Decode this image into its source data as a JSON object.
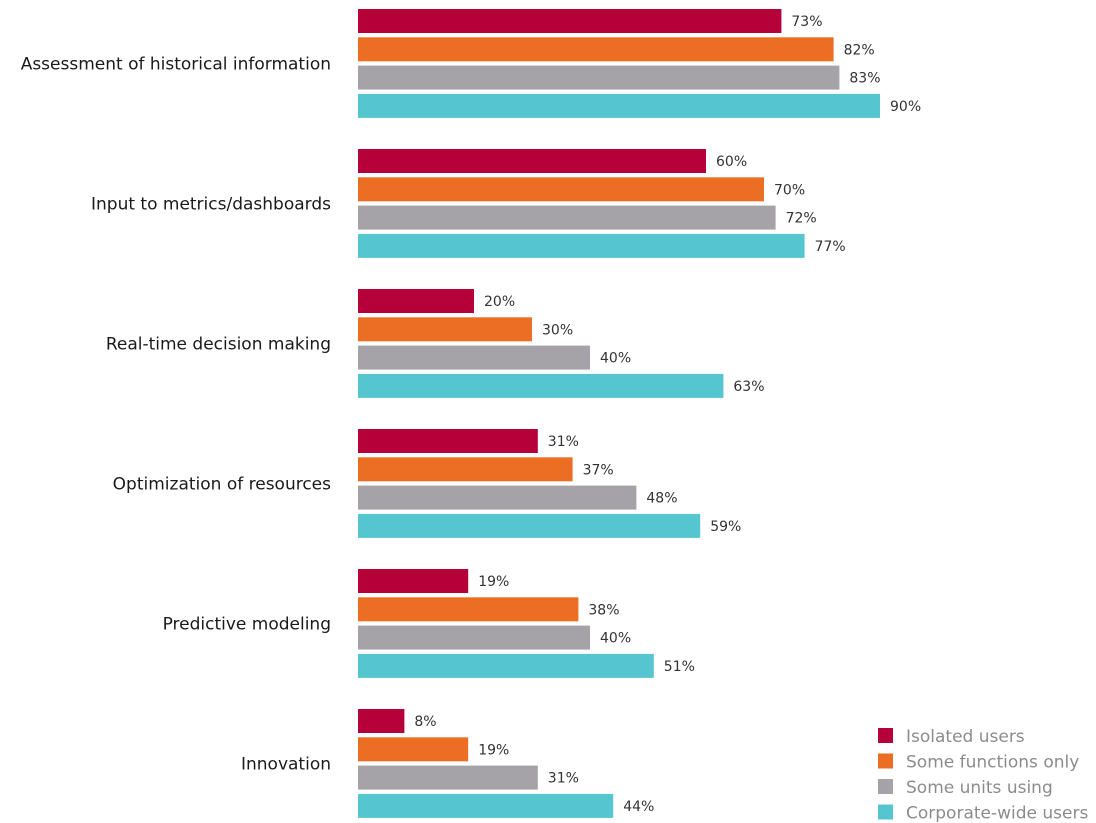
{
  "chart_data": {
    "type": "bar",
    "orientation": "horizontal",
    "categories": [
      "Assessment of historical information",
      "Input to metrics/dashboards",
      "Real-time decision making",
      "Optimization of resources",
      "Predictive modeling",
      "Innovation"
    ],
    "series": [
      {
        "name": "Isolated users",
        "color": "#B5003A",
        "values": [
          73,
          60,
          20,
          31,
          19,
          8
        ],
        "labels": [
          "73%",
          "60%",
          "20%",
          "31%",
          "19%",
          "8%"
        ]
      },
      {
        "name": "Some functions only",
        "color": "#EC6E24",
        "values": [
          82,
          70,
          30,
          37,
          38,
          19
        ],
        "labels": [
          "82%",
          "70%",
          "30%",
          "37%",
          "38%",
          "19%"
        ]
      },
      {
        "name": "Some units using",
        "color": "#A5A3A7",
        "values": [
          83,
          72,
          40,
          48,
          40,
          31
        ],
        "labels": [
          "83%",
          "72%",
          "40%",
          "48%",
          "40%",
          "31%"
        ]
      },
      {
        "name": "Corporate-wide users",
        "color": "#55C6CF",
        "values": [
          90,
          77,
          63,
          59,
          51,
          44
        ],
        "labels": [
          "90%",
          "77%",
          "63%",
          "59%",
          "51%",
          "44%"
        ]
      }
    ],
    "value_suffix": "%",
    "xlim": [
      0,
      100
    ],
    "grid": false,
    "legend_position": "bottom-right"
  }
}
